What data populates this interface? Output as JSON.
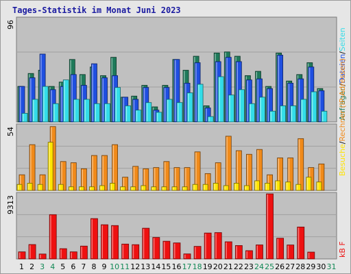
{
  "title": "Tages-Statistik im Monat Juni 2023",
  "colors": {
    "background": "#e6e6e6",
    "panel": "#c0c0c0",
    "gridline": "#a0a0a0",
    "anfragen": "#1f7a5a",
    "dateien": "#1f4fe0",
    "seiten": "#33dde8",
    "rechner": "#f08a1a",
    "besuche": "#ffe400",
    "kb": "#ee1111",
    "weekend_tick": "#118855",
    "weekday_tick": "#000000"
  },
  "days": [
    "1",
    "2",
    "3",
    "4",
    "5",
    "6",
    "7",
    "8",
    "9",
    "10",
    "11",
    "12",
    "13",
    "14",
    "15",
    "16",
    "17",
    "18",
    "19",
    "20",
    "21",
    "22",
    "23",
    "24",
    "25",
    "26",
    "27",
    "28",
    "29",
    "30",
    "31"
  ],
  "weekend_days": [
    3,
    4,
    10,
    11,
    17,
    18,
    24,
    25,
    31
  ],
  "right_labels": {
    "top": [
      "Anfragen",
      "/",
      "Dateien",
      "/",
      "Seiten"
    ],
    "middle": [
      "Besuche",
      "/",
      "Rechner (IP-Adressen)"
    ],
    "bottom": "kB F"
  },
  "chart_data": [
    {
      "type": "bar",
      "panel": "top",
      "ytick_label": "96",
      "ylim": [
        0,
        96
      ],
      "grid": true,
      "series": [
        {
          "name": "Anfragen",
          "values": [
            33,
            45,
            48,
            33,
            37,
            58,
            44,
            51,
            43,
            60,
            23,
            24,
            34,
            14,
            34,
            58,
            48,
            61,
            15,
            64,
            65,
            61,
            43,
            47,
            33,
            64,
            38,
            44,
            55,
            31
          ]
        },
        {
          "name": "Dateien",
          "values": [
            33,
            41,
            63,
            30,
            33,
            44,
            34,
            54,
            41,
            43,
            23,
            21,
            32,
            11,
            32,
            58,
            36,
            55,
            13,
            56,
            60,
            56,
            39,
            40,
            31,
            62,
            36,
            40,
            51,
            29
          ]
        },
        {
          "name": "Seiten",
          "values": [
            8,
            21,
            33,
            17,
            39,
            21,
            21,
            17,
            17,
            32,
            15,
            11,
            18,
            9,
            21,
            18,
            27,
            35,
            5,
            42,
            25,
            30,
            17,
            23,
            10,
            15,
            15,
            21,
            28,
            10
          ]
        }
      ]
    },
    {
      "type": "bar",
      "panel": "middle",
      "ytick_label": "54",
      "ylim": [
        0,
        54
      ],
      "grid": true,
      "series": [
        {
          "name": "Rechner (IP-Adressen)",
          "values": [
            13,
            38,
            13,
            53,
            24,
            23,
            18,
            29,
            29,
            38,
            11,
            20,
            18,
            19,
            24,
            19,
            19,
            32,
            14,
            23,
            45,
            33,
            30,
            34,
            13,
            27,
            27,
            43,
            19,
            22
          ]
        },
        {
          "name": "Besuche",
          "values": [
            5,
            6,
            5,
            40,
            5,
            3,
            3,
            3,
            4,
            6,
            3,
            3,
            4,
            3,
            3,
            3,
            3,
            5,
            5,
            6,
            4,
            6,
            4,
            8,
            6,
            8,
            7,
            5,
            11,
            7
          ]
        }
      ]
    },
    {
      "type": "bar",
      "panel": "bottom",
      "ytick_label": "9313",
      "ylim": [
        0,
        9313
      ],
      "grid": true,
      "series": [
        {
          "name": "kB F",
          "values": [
            1015,
            2060,
            705,
            6340,
            1470,
            1015,
            1840,
            5775,
            4895,
            4780,
            2130,
            2045,
            4400,
            3080,
            2535,
            2295,
            720,
            1800,
            3710,
            3770,
            2455,
            1920,
            1185,
            2010,
            9313,
            2965,
            2000,
            4570,
            980,
            0
          ]
        }
      ]
    }
  ]
}
